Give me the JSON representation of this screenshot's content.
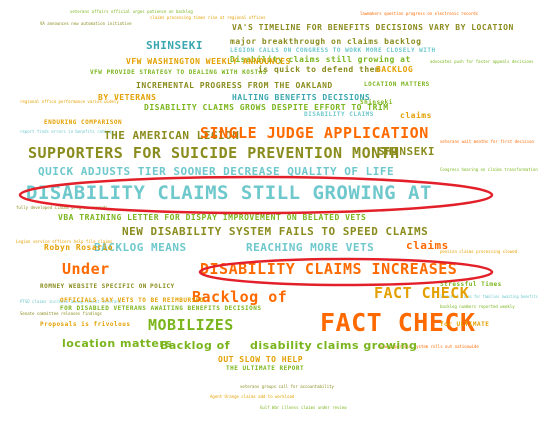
{
  "colors": {
    "green": "#7ab51d",
    "olive": "#8a8c1e",
    "orange": "#ff6a00",
    "amber": "#e3a000",
    "teal": "#6ec8cc",
    "teal_dark": "#3aa7b0",
    "red_oval": "#e3202a"
  },
  "words": {
    "w01": "VA'S TIMELINE FOR BENEFITS DECISIONS VARY BY LOCATION",
    "w02": "SHINSEKI",
    "w03": "major breakthrough on claims backlog",
    "w04": "Disability claims still growing at",
    "w05": "BACKLOG",
    "w06": "is quick to defend them",
    "w07": "INCREMENTAL PROGRESS FROM THE OAKLAND",
    "w08": "LOCATION MATTERS",
    "w09": "BY VETERANS",
    "w10": "DISABILITY CLAIMS GROWS DESPITE EFFORT TO TRIM",
    "w11": "HALTING BENEFITS DECISIONS",
    "w12": "DISABILITY CLAIMS",
    "w13": "THE AMERICAN LEGION",
    "w14": "SINGLE JUDGE APPLICATION",
    "w15": "SUPPORTERS FOR SUICIDE PREVENTION MONTH",
    "w16": "SHINSEKI",
    "w17": "QUICK ADJUSTS TIER SOONER DECREASE QUALITY OF LIFE",
    "w18": "DISABILITY CLAIMS STILL GROWING AT",
    "w19": "VBA TRAINING LETTER FOR DISPAY IMPROVEMENT ON BELATED VETS",
    "w20": "NEW DISABILITY SYSTEM FAILS TO SPEED CLAIMS",
    "w21": "BACKLOG MEANS",
    "w22": "REACHING MORE VETS",
    "w23": "claims",
    "w24": "Under",
    "w25": "DISABILITY CLAIMS INCREASES",
    "w26": "FACT CHECK",
    "w27": "Backlog of",
    "w28": "FACT CHECK",
    "w29": "MOBILIZES",
    "w30": "location matters",
    "w31": "Backlog of",
    "w32": "disability claims growing",
    "w33": "OUT SLOW TO HELP",
    "w34": "Robyn Rosario",
    "w35": "Proposals is frivolous",
    "w36": "ROMNEY WEBSITE SPECIFIC ON",
    "w37": "POLICY",
    "w38": "THE ULTIMATE REPORT",
    "w39": "FOR DISABLED VETERANS AWAITING BENEFITS DECISIONS",
    "w40": "VFW WASHINGTON WEEKLY ANNOUNCES",
    "w41": "VFW PROVIDE STRATEGY TO DEALING WITH KOSTAS",
    "w42": "LEGION CALLS ON CONGRESS TO WORK MORE CLOSELY WITH",
    "w43": "Shinseki",
    "w44": "OFFICIALS SAY VETS TO BE REIMBURSED",
    "w45": "for ULTIMATE",
    "w46": "Stressful Times",
    "w47": "ENDURING COMPARISON",
    "w48": "claims"
  },
  "tiny_text": [
    "veterans affairs official urges patience on backlog",
    "claims processing times rise at regional offices",
    "VA announces new automation initiative",
    "lawmakers question progress on electronic records",
    "advocates push for faster appeals decisions",
    "regional office performance varies widely",
    "report finds errors in benefits ratings",
    "veterans wait months for first decision",
    "Congress hearing on claims transformation",
    "fully developed claims program expands",
    "Legion service officers help file claims",
    "Stressful times for families awaiting benefits",
    "backlog numbers reported weekly",
    "new paperless system rolls out nationwide",
    "veterans groups call for accountability",
    "Agent Orange claims add to workload",
    "Gulf War illness claims under review",
    "PTSD claims increase among recent veterans",
    "Senate committee releases findings",
    "pension claims processing slowed"
  ]
}
